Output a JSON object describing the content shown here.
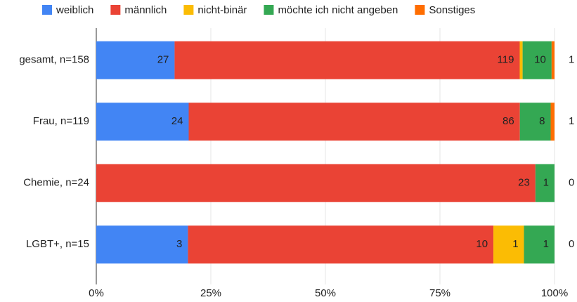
{
  "chart_data": {
    "type": "bar",
    "orientation": "horizontal",
    "stacked": "percent",
    "categories": [
      "gesamt, n=158",
      "Frau, n=119",
      "Chemie, n=24",
      "LGBT+, n=15"
    ],
    "series": [
      {
        "name": "weiblich",
        "color": "#4285f4",
        "values": [
          27,
          24,
          0,
          3
        ]
      },
      {
        "name": "männlich",
        "color": "#ea4335",
        "values": [
          119,
          86,
          23,
          10
        ]
      },
      {
        "name": "nicht-binär",
        "color": "#fbbc04",
        "values": [
          1,
          0,
          0,
          1
        ]
      },
      {
        "name": "möchte ich nicht angeben",
        "color": "#34a853",
        "values": [
          10,
          8,
          1,
          1
        ]
      },
      {
        "name": "Sonstiges",
        "color": "#ff6d01",
        "values": [
          1,
          1,
          0,
          0
        ]
      }
    ],
    "xlim": [
      0,
      100
    ],
    "xticks": [
      {
        "value": 0,
        "label": "0%"
      },
      {
        "value": 25,
        "label": "25%"
      },
      {
        "value": 50,
        "label": "50%"
      },
      {
        "value": 75,
        "label": "75%"
      },
      {
        "value": 100,
        "label": "100%"
      }
    ],
    "grid": true,
    "legend": "top"
  }
}
